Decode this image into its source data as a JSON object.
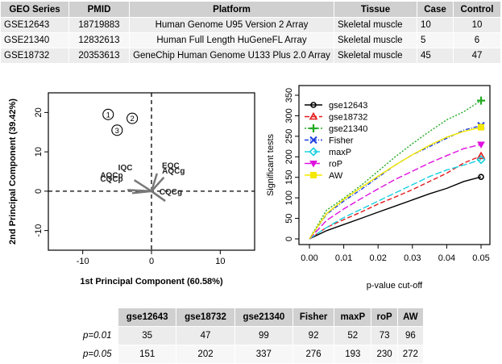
{
  "geo_table": {
    "headers": [
      "GEO Series",
      "PMID",
      "Platform",
      "Tissue",
      "Case",
      "Control"
    ],
    "rows": [
      [
        "GSE12643",
        "18719883",
        "Human Genome U95 Version 2 Array",
        "Skeletal muscle",
        "10",
        "10"
      ],
      [
        "GSE21340",
        "12832613",
        "Human Full Length HuGeneFL Array",
        "Skeletal muscle",
        "5",
        "6"
      ],
      [
        "GSE18732",
        "20353613",
        "GeneChip Human Genome U133 Plus 2.0 Array",
        "Skeletal muscle",
        "45",
        "47"
      ]
    ]
  },
  "result_table": {
    "headers": [
      "gse12643",
      "gse18732",
      "gse21340",
      "Fisher",
      "maxP",
      "roP",
      "AW"
    ],
    "rows": [
      {
        "label": "p=0.01",
        "values": [
          "35",
          "47",
          "99",
          "92",
          "52",
          "73",
          "96"
        ]
      },
      {
        "label": "p=0.05",
        "values": [
          "151",
          "202",
          "337",
          "276",
          "193",
          "230",
          "272"
        ]
      }
    ]
  },
  "chart_data": [
    {
      "type": "scatter",
      "title": "",
      "xlabel": "1st Principal Component (60.58%)",
      "ylabel": "2nd Principal Component (39.42%)",
      "xlim": [
        -15,
        15
      ],
      "ylim": [
        -15,
        25
      ],
      "xticks": [
        "-10",
        "0",
        "10"
      ],
      "yticks": [
        "-10",
        "0",
        "10",
        "20"
      ],
      "xtick_values": [
        -10,
        0,
        10
      ],
      "ytick_values": [
        -10,
        0,
        10,
        20
      ],
      "reference_lines": {
        "x": 0,
        "y": 0
      },
      "points": [
        {
          "label": "1",
          "x": -6.3,
          "y": 19.5
        },
        {
          "label": "2",
          "x": -2.8,
          "y": 18.5
        },
        {
          "label": "3",
          "x": -5.0,
          "y": 15.5
        }
      ],
      "point_labels": [
        {
          "text": "IQC",
          "x": -3.8,
          "y": 5.3
        },
        {
          "text": "EQC",
          "x": 2.8,
          "y": 5.8
        },
        {
          "text": "AQCg",
          "x": 3.2,
          "y": 4.5
        },
        {
          "text": "AQCp",
          "x": -5.8,
          "y": 3.4
        },
        {
          "text": "CQCp",
          "x": -5.8,
          "y": 2.4
        },
        {
          "text": "CQCg",
          "x": 2.8,
          "y": -0.8
        }
      ],
      "arrows": [
        {
          "x1": 0,
          "y1": 0,
          "x2": 0.8,
          "y2": 4.5
        },
        {
          "x1": 0,
          "y1": 0,
          "x2": 1.8,
          "y2": 3.5
        },
        {
          "x1": 0,
          "y1": 0,
          "x2": -2.5,
          "y2": 2.8
        },
        {
          "x1": 0,
          "y1": 0,
          "x2": -3.5,
          "y2": 0.3
        },
        {
          "x1": 0,
          "y1": 0,
          "x2": -2.8,
          "y2": -0.5
        },
        {
          "x1": 0,
          "y1": 0,
          "x2": 2.0,
          "y2": -2.5
        },
        {
          "x1": 0,
          "y1": 0,
          "x2": 1.2,
          "y2": -1.5
        }
      ]
    },
    {
      "type": "line",
      "title": "",
      "xlabel": "p-value cut-off",
      "ylabel": "Significant tests",
      "xlim": [
        0,
        0.05
      ],
      "ylim": [
        0,
        350
      ],
      "xticks": [
        "0.00",
        "0.01",
        "0.02",
        "0.03",
        "0.04",
        "0.05"
      ],
      "yticks": [
        "0",
        "50",
        "100",
        "150",
        "200",
        "250",
        "300",
        "350"
      ],
      "xtick_values": [
        0,
        0.01,
        0.02,
        0.03,
        0.04,
        0.05
      ],
      "ytick_values": [
        0,
        50,
        100,
        150,
        200,
        250,
        300,
        350
      ],
      "x": [
        0,
        0.005,
        0.01,
        0.015,
        0.02,
        0.025,
        0.03,
        0.035,
        0.04,
        0.045,
        0.05
      ],
      "legend_position": "top-left",
      "series": [
        {
          "name": "gse12643",
          "color": "#000000",
          "dash": "",
          "marker": "circle",
          "values": [
            0,
            20,
            35,
            50,
            65,
            80,
            95,
            110,
            123,
            140,
            151
          ]
        },
        {
          "name": "gse18732",
          "color": "#e41a1c",
          "dash": "6,3",
          "marker": "triangle",
          "values": [
            0,
            28,
            47,
            65,
            85,
            102,
            120,
            140,
            160,
            185,
            202
          ]
        },
        {
          "name": "gse21340",
          "color": "#22aa22",
          "dash": "2,2",
          "marker": "plus",
          "values": [
            0,
            70,
            99,
            130,
            165,
            200,
            232,
            262,
            290,
            310,
            337
          ]
        },
        {
          "name": "Fisher",
          "color": "#1f3fe0",
          "dash": "5,2,1,2",
          "marker": "x",
          "values": [
            0,
            60,
            92,
            120,
            150,
            180,
            205,
            225,
            245,
            265,
            276
          ]
        },
        {
          "name": "maxP",
          "color": "#18d0e0",
          "dash": "8,3",
          "marker": "diamond",
          "values": [
            0,
            28,
            52,
            72,
            92,
            112,
            132,
            152,
            168,
            180,
            193
          ]
        },
        {
          "name": "roP",
          "color": "#e010e0",
          "dash": "8,3",
          "marker": "triangle-down",
          "values": [
            0,
            45,
            73,
            98,
            122,
            145,
            165,
            185,
            203,
            220,
            230
          ]
        },
        {
          "name": "AW",
          "color": "#f5e800",
          "dash": "",
          "marker": "square",
          "values": [
            0,
            62,
            96,
            125,
            153,
            180,
            205,
            228,
            248,
            262,
            272
          ]
        }
      ]
    }
  ]
}
